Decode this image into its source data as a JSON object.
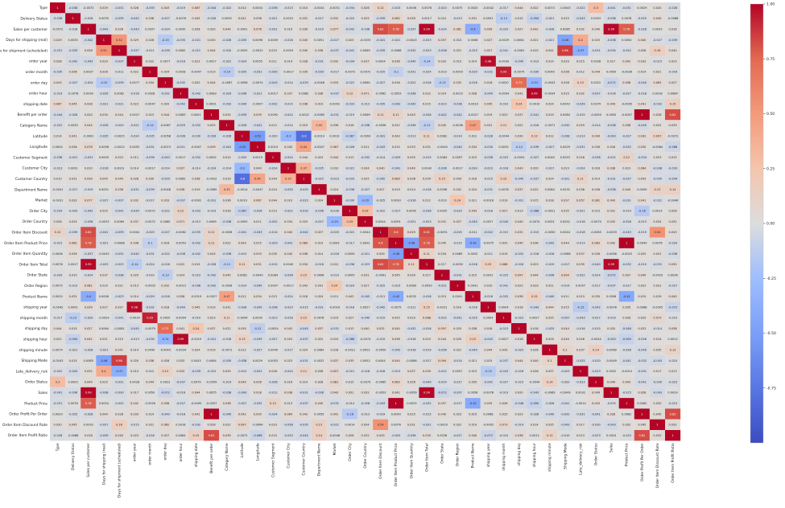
{
  "chart_data": {
    "type": "heatmap",
    "title": "",
    "colormap": "coolwarm",
    "value_range": [
      -1,
      1
    ],
    "colorbar_ticks": [
      "1.00",
      "0.75",
      "0.50",
      "0.25",
      "0.00",
      "-0.25",
      "-0.50",
      "-0.75"
    ],
    "colorbar_tick_values": [
      1.0,
      0.75,
      0.5,
      0.25,
      0.0,
      -0.25,
      -0.5,
      -0.75
    ],
    "labels": [
      "Type",
      "Delivery Status",
      "Sales per customer",
      "Days for shipping (real)",
      "Days for shipment (scheduled)",
      "order year",
      "order month",
      "order day",
      "order hour",
      "shipping date",
      "Benefit per order",
      "Category Name",
      "Latitude",
      "Longitude",
      "Customer Segment",
      "Customer City",
      "Customer Country",
      "Department Name",
      "Market",
      "Order City",
      "Order Country",
      "Order Item Discount",
      "Order Item Product Price",
      "Order Item Quantity",
      "Order Item Total",
      "Order State",
      "Order Region",
      "Product Name",
      "shipping year",
      "shipping month",
      "shipping day",
      "shipping hour",
      "shipping minute",
      "Shipping Mode",
      "Late_delivery_risk",
      "Order Status",
      "Sales",
      "Product Price",
      "Order Profit Per Order",
      "Order Item Discount Rate",
      "Order Item Profit Ratio"
    ],
    "strong_correlations": [
      {
        "a": "Sales per customer",
        "b": "Order Item Product Price",
        "value": 0.78
      },
      {
        "a": "Sales per customer",
        "b": "Order Item Total",
        "value": 0.99
      },
      {
        "a": "Sales per customer",
        "b": "Sales",
        "value": 0.99
      },
      {
        "a": "Sales per customer",
        "b": "Product Price",
        "value": 0.78
      },
      {
        "a": "Sales per customer",
        "b": "Order Item Discount",
        "value": 0.82
      },
      {
        "a": "Days for shipping (real)",
        "b": "Days for shipment (scheduled)",
        "value": 0.52
      },
      {
        "a": "Days for shipping (real)",
        "b": "Late_delivery_risk",
        "value": 0.4
      },
      {
        "a": "Days for shipment (scheduled)",
        "b": "Shipping Mode",
        "value": 0.86
      },
      {
        "a": "Days for shipment (scheduled)",
        "b": "Late_delivery_risk",
        "value": -0.37
      },
      {
        "a": "order year",
        "b": "shipping year",
        "value": 0.98
      },
      {
        "a": "order month",
        "b": "shipping month",
        "value": 0.93
      },
      {
        "a": "order day",
        "b": "shipping day",
        "value": 0.73
      },
      {
        "a": "order hour",
        "b": "shipping hour",
        "value": 0.99
      },
      {
        "a": "Benefit per order",
        "b": "Order Profit Per Order",
        "value": 1.0
      },
      {
        "a": "Benefit per order",
        "b": "Order Item Profit Ratio",
        "value": 0.82
      },
      {
        "a": "Category Name",
        "b": "Product Name",
        "value": 0.47
      },
      {
        "a": "Category Name",
        "b": "Department Name",
        "value": 0.33
      },
      {
        "a": "Latitude",
        "b": "Longitude",
        "value": -0.52
      },
      {
        "a": "Latitude",
        "b": "Customer City",
        "value": -0.3
      },
      {
        "a": "Latitude",
        "b": "Customer Country",
        "value": -0.8
      },
      {
        "a": "Longitude",
        "b": "Customer Country",
        "value": 0.44
      },
      {
        "a": "Customer City",
        "b": "Customer Country",
        "value": 0.37
      },
      {
        "a": "Market",
        "b": "Order Country",
        "value": -0.29
      },
      {
        "a": "Market",
        "b": "Order Region",
        "value": 0.24
      },
      {
        "a": "Order City",
        "b": "Order Country",
        "value": 0.29
      },
      {
        "a": "Order Item Discount",
        "b": "Order Item Product Price",
        "value": 0.8
      },
      {
        "a": "Order Item Discount",
        "b": "Order Item Total",
        "value": 0.82
      },
      {
        "a": "Order Item Product Price",
        "b": "Order Item Total",
        "value": 0.78
      },
      {
        "a": "Order Item Product Price",
        "b": "Order Item Quantity",
        "value": -0.48
      },
      {
        "a": "Order Item Quantity",
        "b": "Order Item Total",
        "value": 0.11
      },
      {
        "a": "Order Item Total",
        "b": "Sales",
        "value": 0.99
      },
      {
        "a": "Order Item Product Price",
        "b": "Product Price",
        "value": 1.0
      },
      {
        "a": "Order Item Discount Rate",
        "b": "Order Item Discount",
        "value": 0.54
      },
      {
        "a": "Order Item Profit Ratio",
        "b": "Order Profit Per Order",
        "value": 0.82
      },
      {
        "a": "Product Name",
        "b": "Order Item Product Price",
        "value": -0.42
      },
      {
        "a": "Product Name",
        "b": "Product Price",
        "value": -0.42
      },
      {
        "a": "Product Name",
        "b": "Sales per customer",
        "value": -0.4
      },
      {
        "a": "shipping day",
        "b": "shipping date",
        "value": 0.24
      },
      {
        "a": "shipping hour",
        "b": "order day",
        "value": -0.31
      },
      {
        "a": "Shipping Mode",
        "b": "Days for shipping (real)",
        "value": -0.46
      },
      {
        "a": "Order Status",
        "b": "Type",
        "value": 0.3
      }
    ]
  }
}
